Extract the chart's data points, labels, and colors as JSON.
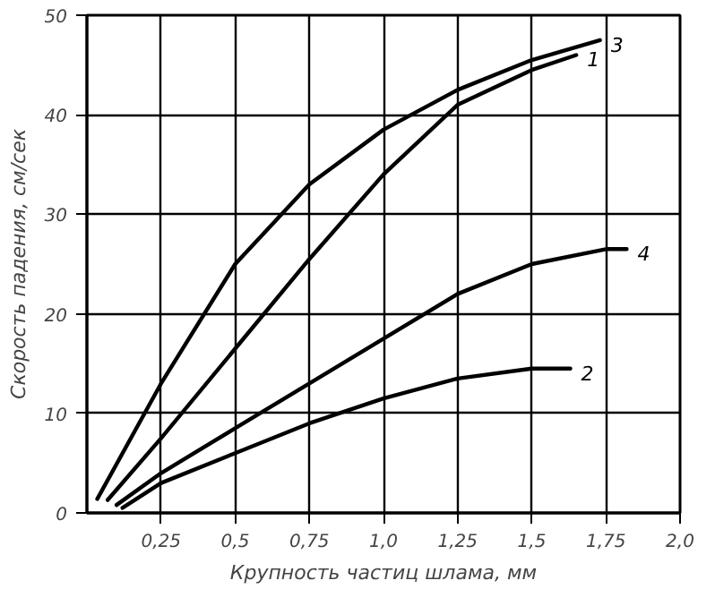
{
  "chart_data": {
    "type": "line",
    "xlabel": "Крупность частиц шлама, мм",
    "ylabel": "Скорость падения, см/сек",
    "xlim": [
      0,
      2.0
    ],
    "ylim": [
      0,
      50
    ],
    "xticks": [
      {
        "value": 0.25,
        "label": "0,25"
      },
      {
        "value": 0.5,
        "label": "0,5"
      },
      {
        "value": 0.75,
        "label": "0,75"
      },
      {
        "value": 1.0,
        "label": "1,0"
      },
      {
        "value": 1.25,
        "label": "1,25"
      },
      {
        "value": 1.5,
        "label": "1,5"
      },
      {
        "value": 1.75,
        "label": "1,75"
      },
      {
        "value": 2.0,
        "label": "2,0"
      }
    ],
    "yticks": [
      0,
      10,
      20,
      30,
      40,
      50
    ],
    "grid": true,
    "marker": "none",
    "line_style": "solid",
    "series": [
      {
        "name": "1",
        "color": "#000000",
        "x": [
          0.07,
          0.25,
          0.5,
          0.75,
          1.0,
          1.25,
          1.5,
          1.65
        ],
        "values": [
          1.3,
          7.5,
          16.5,
          25.5,
          34,
          41,
          44.5,
          46
        ]
      },
      {
        "name": "2",
        "color": "#000000",
        "x": [
          0.12,
          0.25,
          0.5,
          0.75,
          1.0,
          1.25,
          1.5,
          1.63
        ],
        "values": [
          0.5,
          3,
          6,
          9,
          11.5,
          13.5,
          14.5,
          14.5
        ]
      },
      {
        "name": "3",
        "color": "#000000",
        "x": [
          0.035,
          0.25,
          0.5,
          0.75,
          1.0,
          1.25,
          1.5,
          1.73
        ],
        "values": [
          1.4,
          13,
          25,
          33,
          38.5,
          42.5,
          45.5,
          47.5
        ]
      },
      {
        "name": "4",
        "color": "#000000",
        "x": [
          0.1,
          0.25,
          0.5,
          0.75,
          1.0,
          1.25,
          1.5,
          1.75,
          1.82
        ],
        "values": [
          0.8,
          4,
          8.5,
          13,
          17.5,
          22,
          25,
          26.5,
          26.5
        ]
      }
    ]
  }
}
